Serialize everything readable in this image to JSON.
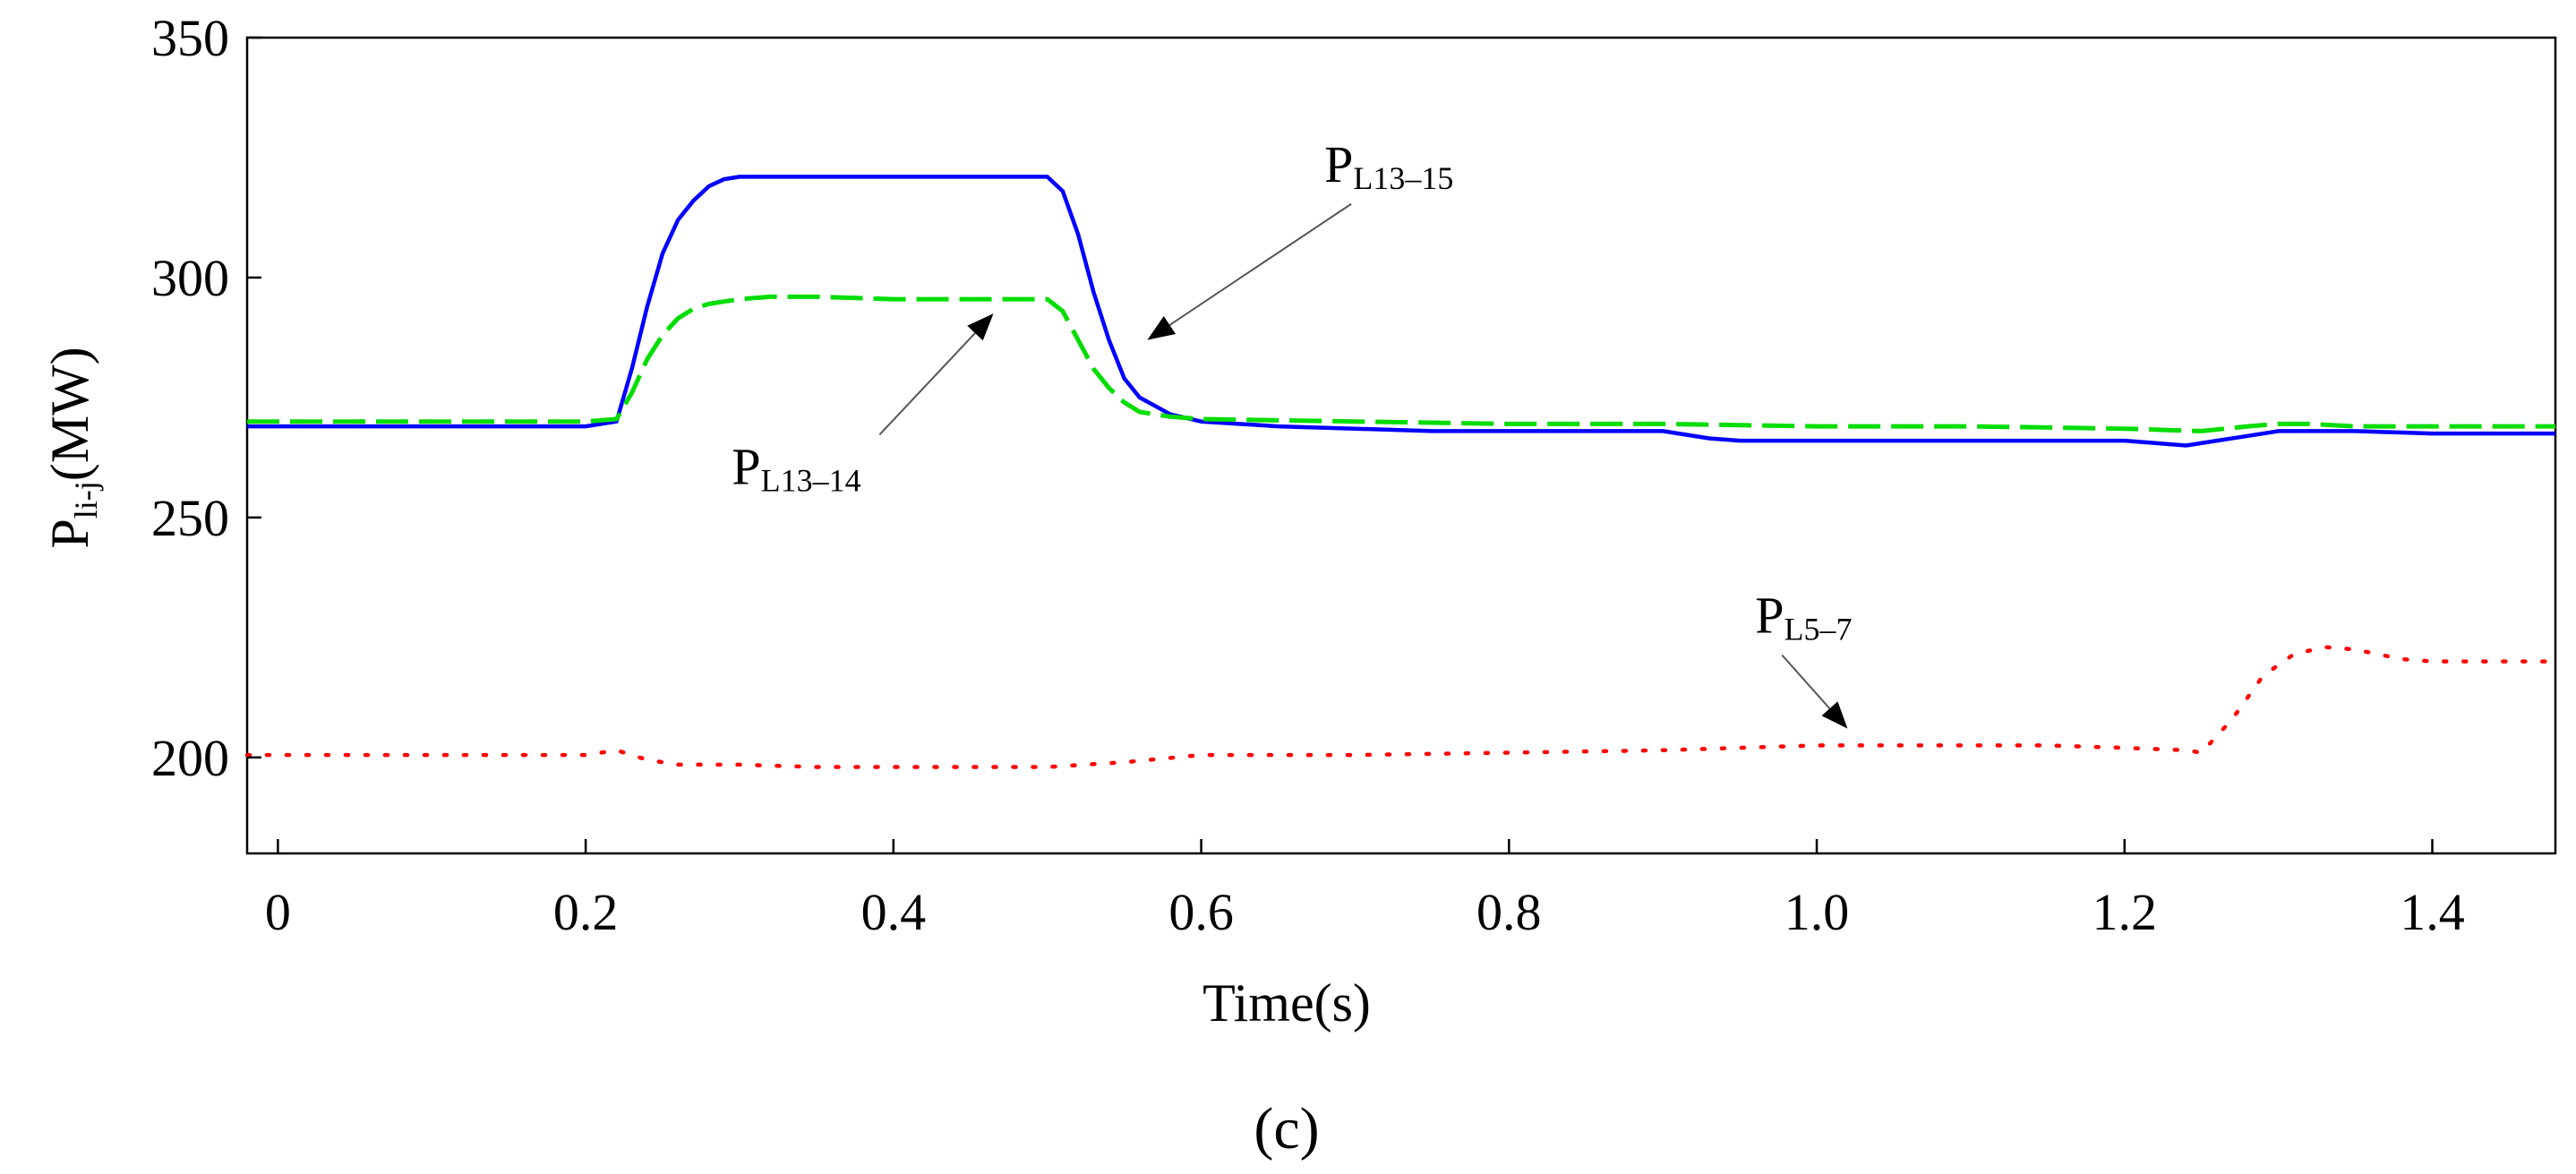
{
  "figure_label": "(c)",
  "chart_data": {
    "type": "line",
    "title": "",
    "xlabel": "Time(s)",
    "ylabel": {
      "main": "P",
      "sub": "li-j",
      "unit": "(MW)"
    },
    "xlim": [
      -0.02,
      1.48
    ],
    "ylim": [
      180,
      350
    ],
    "xticks": [
      0,
      0.2,
      0.4,
      0.6,
      0.8,
      1.0,
      1.2,
      1.4
    ],
    "xtick_labels": [
      "0",
      "0.2",
      "0.4",
      "0.6",
      "0.8",
      "1.0",
      "1.2",
      "1.4"
    ],
    "yticks": [
      200,
      250,
      300,
      350
    ],
    "ytick_labels": [
      "200",
      "250",
      "300",
      "350"
    ],
    "grid": false,
    "legend": "none",
    "series": [
      {
        "name": "PL13-15",
        "label_main": "P",
        "label_sub": "L13–15",
        "color": "#0000ff",
        "style": "solid",
        "x": [
          -0.02,
          0.2,
          0.22,
          0.23,
          0.24,
          0.25,
          0.26,
          0.27,
          0.28,
          0.29,
          0.3,
          0.35,
          0.4,
          0.45,
          0.5,
          0.51,
          0.52,
          0.53,
          0.54,
          0.55,
          0.56,
          0.58,
          0.6,
          0.65,
          0.7,
          0.75,
          0.8,
          0.85,
          0.9,
          0.93,
          0.95,
          1.0,
          1.05,
          1.1,
          1.15,
          1.2,
          1.22,
          1.24,
          1.26,
          1.28,
          1.3,
          1.32,
          1.35,
          1.4,
          1.45,
          1.48
        ],
        "y": [
          269,
          269,
          270,
          281,
          294,
          305,
          312,
          316,
          319,
          320.5,
          321,
          321,
          321,
          321,
          321,
          318,
          309,
          297,
          287,
          279,
          275,
          271.5,
          270,
          269,
          268.5,
          268,
          268,
          268,
          268,
          266.5,
          266,
          266,
          266,
          266,
          266,
          266,
          265.5,
          265,
          266,
          267,
          268,
          268,
          268,
          267.5,
          267.5,
          267.5
        ]
      },
      {
        "name": "PL13-14",
        "label_main": "P",
        "label_sub": "L13–14",
        "color": "#00dd00",
        "style": "dashed",
        "x": [
          -0.02,
          0.2,
          0.22,
          0.23,
          0.24,
          0.25,
          0.26,
          0.27,
          0.28,
          0.29,
          0.3,
          0.32,
          0.35,
          0.4,
          0.45,
          0.5,
          0.51,
          0.52,
          0.53,
          0.54,
          0.55,
          0.56,
          0.58,
          0.6,
          0.7,
          0.8,
          0.9,
          1.0,
          1.1,
          1.2,
          1.25,
          1.28,
          1.3,
          1.32,
          1.35,
          1.4,
          1.45,
          1.48
        ],
        "y": [
          270,
          270,
          270.5,
          276,
          283,
          288,
          291.5,
          293.5,
          294.5,
          295,
          295.5,
          296,
          296,
          295.5,
          295.5,
          295.5,
          293,
          287,
          281,
          277,
          274,
          272,
          271,
          270.5,
          270,
          269.5,
          269.5,
          269,
          269,
          268.5,
          268,
          269,
          269.5,
          269.5,
          269,
          269,
          269,
          269
        ]
      },
      {
        "name": "PL5-7",
        "label_main": "P",
        "label_sub": "L5–7",
        "color": "#ff0000",
        "style": "dotted",
        "x": [
          -0.02,
          0.1,
          0.2,
          0.22,
          0.24,
          0.26,
          0.3,
          0.35,
          0.4,
          0.45,
          0.5,
          0.55,
          0.6,
          0.7,
          0.8,
          0.9,
          0.95,
          1.0,
          1.05,
          1.1,
          1.15,
          1.2,
          1.24,
          1.25,
          1.27,
          1.29,
          1.31,
          1.33,
          1.35,
          1.38,
          1.4,
          1.45,
          1.48
        ],
        "y": [
          200.5,
          200.5,
          200.5,
          201.5,
          199.5,
          198.5,
          198.5,
          198,
          198,
          198,
          198,
          199,
          200.5,
          200.5,
          201,
          201.5,
          202,
          202.5,
          202.5,
          202.5,
          202.5,
          202,
          201.5,
          201,
          208,
          217,
          221.5,
          223,
          222.5,
          220.5,
          220,
          220,
          220
        ]
      }
    ],
    "annotations": [
      {
        "series": "PL13-15",
        "text_main": "P",
        "text_sub": "L13–15",
        "label_x": 0.68,
        "label_y": 320,
        "arrow_x": 0.565,
        "arrow_y": 287
      },
      {
        "series": "PL13-14",
        "text_main": "P",
        "text_sub": "L13–14",
        "label_x": 0.295,
        "label_y": 257,
        "arrow_x": 0.465,
        "arrow_y": 292.5
      },
      {
        "series": "PL5-7",
        "text_main": "P",
        "text_sub": "L5–7",
        "label_x": 0.96,
        "label_y": 226,
        "arrow_x": 1.02,
        "arrow_y": 206
      }
    ]
  }
}
